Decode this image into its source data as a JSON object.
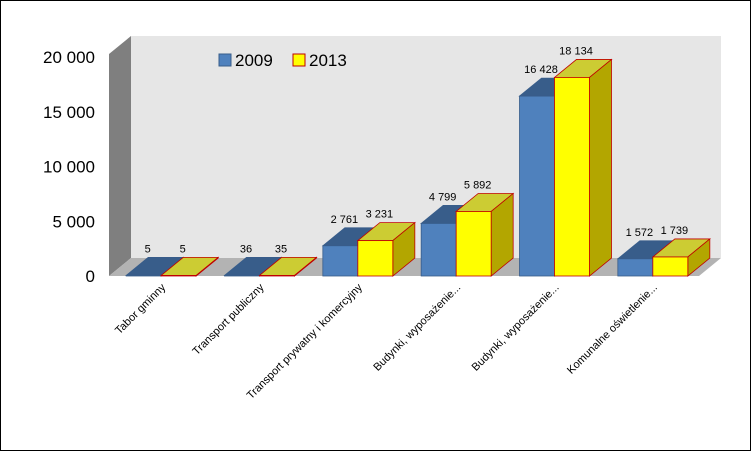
{
  "chart_data": {
    "type": "bar",
    "categories": [
      "Tabor gminny",
      "Transport publiczny",
      "Transport prywatny i komercyjny",
      "Budynki, wyposażenie...",
      "Budynki, wyposażenie...",
      "Komunalne oświetlenie..."
    ],
    "series": [
      {
        "name": "2009",
        "values": [
          5,
          36,
          2761,
          4799,
          16428,
          1572
        ],
        "labels": [
          "5",
          "36",
          "2 761",
          "4 799",
          "16 428",
          "1 572"
        ]
      },
      {
        "name": "2013",
        "values": [
          5,
          35,
          3231,
          5892,
          18134,
          1739
        ],
        "labels": [
          "5",
          "35",
          "3 231",
          "5 892",
          "18 134",
          "1 739"
        ]
      }
    ],
    "yticks": [
      0,
      5000,
      10000,
      15000,
      20000
    ],
    "ytick_labels": [
      "0",
      "5 000",
      "10 000",
      "15 000",
      "20 000"
    ],
    "ylim": [
      0,
      20000
    ],
    "legend_position": "top-left",
    "grid": false,
    "three_d": true,
    "colors": {
      "s2009_front": "#4f81bd",
      "s2009_top": "#385d8a",
      "s2009_side": "#2b4a72",
      "s2013_front": "#ffff00",
      "s2013_top": "#cccc33",
      "s2013_side": "#b3a600",
      "s2013_border": "#c00000",
      "wall": "#e6e6e6",
      "floor": "#b3b3b3"
    }
  }
}
